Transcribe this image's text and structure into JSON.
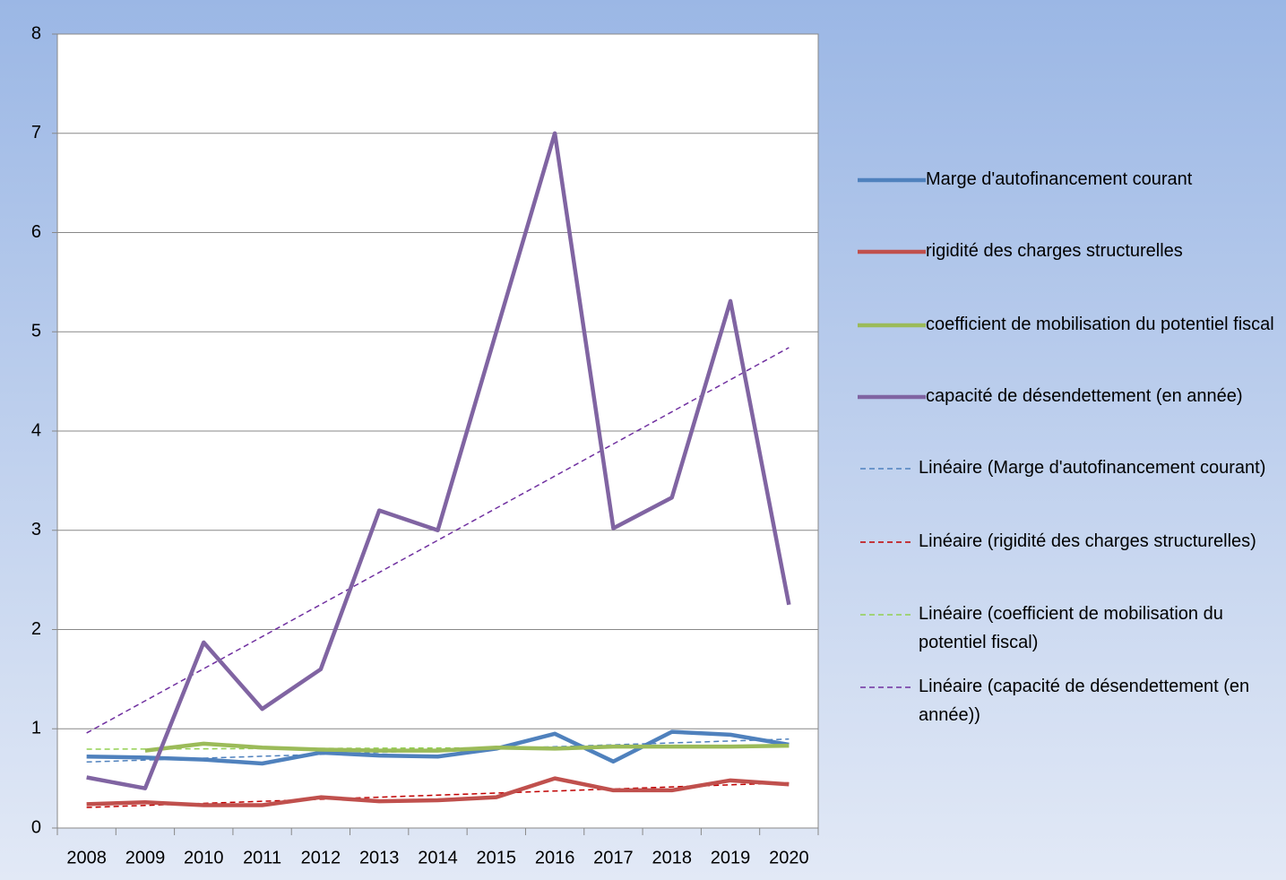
{
  "chart_data": {
    "type": "line",
    "categories": [
      "2008",
      "2009",
      "2010",
      "2011",
      "2012",
      "2013",
      "2014",
      "2015",
      "2016",
      "2017",
      "2018",
      "2019",
      "2020"
    ],
    "ylim": [
      0,
      8
    ],
    "yticks": [
      0,
      1,
      2,
      3,
      4,
      5,
      6,
      7,
      8
    ],
    "grid": true,
    "legend": "right",
    "series": [
      {
        "name": "Marge d'autofinancement courant",
        "color": "#4f81bd",
        "trend_name": "Linéaire (Marge d'autofinancement courant)",
        "trend_color": "#4f81bd",
        "values": [
          0.72,
          0.71,
          0.69,
          0.65,
          0.76,
          0.73,
          0.72,
          0.8,
          0.95,
          0.67,
          0.97,
          0.94,
          0.84
        ]
      },
      {
        "name": "rigidité des charges structurelles",
        "color": "#c0504d",
        "trend_name": "Linéaire (rigidité des charges structurelles)",
        "trend_color": "#c00000",
        "values": [
          0.24,
          0.26,
          0.23,
          0.23,
          0.31,
          0.27,
          0.28,
          0.31,
          0.5,
          0.38,
          0.38,
          0.48,
          0.44
        ]
      },
      {
        "name": "coefficient de mobilisation du potentiel fiscal",
        "color": "#9bbb59",
        "trend_name": "Linéaire (coefficient de mobilisation du potentiel fiscal)",
        "trend_color": "#92d050",
        "values": [
          null,
          0.78,
          0.85,
          0.81,
          0.79,
          0.78,
          0.78,
          0.81,
          0.8,
          0.82,
          0.82,
          0.82,
          0.83
        ]
      },
      {
        "name": "capacité de désendettement (en année)",
        "color": "#8064a2",
        "trend_name": "Linéaire (capacité de désendettement (en année))",
        "trend_color": "#7030a0",
        "values": [
          0.51,
          0.4,
          1.87,
          1.2,
          1.6,
          3.2,
          3.0,
          5.0,
          7.0,
          3.02,
          3.33,
          5.31,
          2.25
        ]
      }
    ]
  }
}
